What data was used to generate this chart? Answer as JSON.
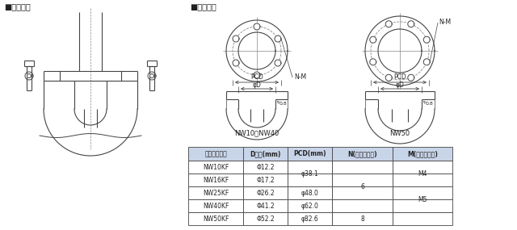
{
  "title_left": "■使用方法",
  "title_right": "■加工寸法",
  "label_nw10_40": "NW10～NW40",
  "label_nw50": "NW50",
  "label_pcd": "PCD",
  "label_phiD": "φD",
  "label_nm": "N-M",
  "label_08": "0.8",
  "table_headers": [
    "適合フランジ",
    "D寸法(mm)",
    "PCD(mm)",
    "N(ボルト穴数)",
    "M(ネジサイズ)"
  ],
  "table_data": [
    [
      "NW10KF",
      "Φ12.2",
      "φ38.1",
      "6",
      "M4"
    ],
    [
      "NW16KF",
      "Φ17.2",
      "",
      "",
      ""
    ],
    [
      "NW25KF",
      "Φ26.2",
      "φ48.0",
      "",
      ""
    ],
    [
      "NW40KF",
      "Φ41.2",
      "φ62.0",
      "",
      "M5"
    ],
    [
      "NW50KF",
      "Φ52.2",
      "φ82.6",
      "8",
      ""
    ]
  ],
  "bg_color": "#ffffff",
  "line_color": "#444444",
  "table_header_bg": "#c8d4e8",
  "table_border_color": "#444444",
  "text_color": "#222222",
  "dash_color": "#888888"
}
